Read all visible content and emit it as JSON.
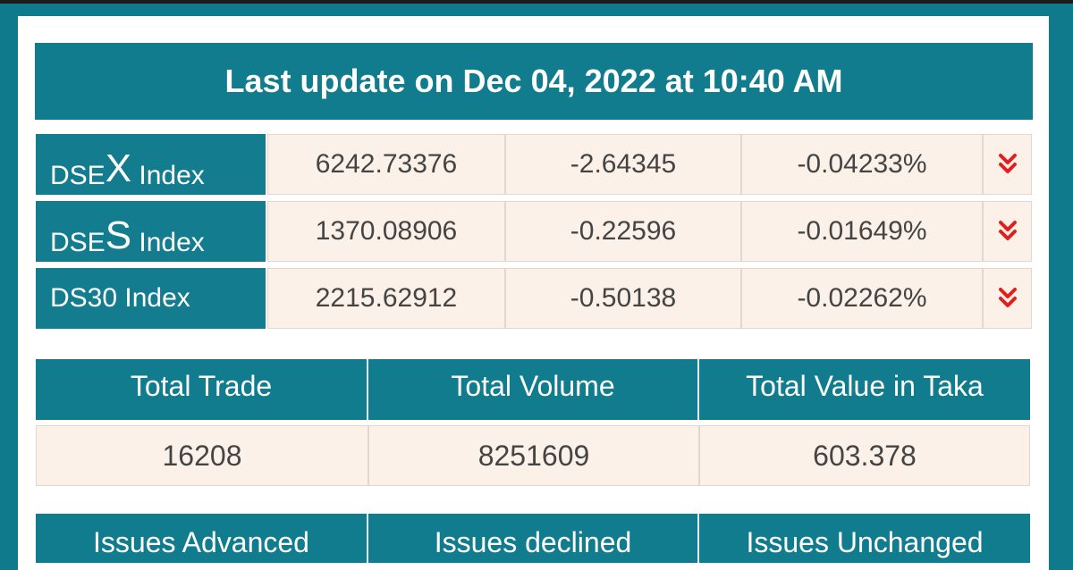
{
  "header": {
    "last_update": "Last update on Dec 04, 2022 at 10:40 AM"
  },
  "indices": [
    {
      "prefix": "DSE",
      "letter": "X",
      "suffix": " Index",
      "value": "6242.73376",
      "change": "-2.64345",
      "percent": "-0.04233%",
      "direction": "down"
    },
    {
      "prefix": "DSE",
      "letter": "S",
      "suffix": " Index",
      "value": "1370.08906",
      "change": "-0.22596",
      "percent": "-0.01649%",
      "direction": "down"
    },
    {
      "label": "DS30 Index",
      "value": "2215.62912",
      "change": "-0.50138",
      "percent": "-0.02262%",
      "direction": "down"
    }
  ],
  "totals": {
    "headers": [
      "Total Trade",
      "Total Volume",
      "Total Value in Taka"
    ],
    "values": [
      "16208",
      "8251609",
      "603.378"
    ]
  },
  "issues": {
    "headers": [
      "Issues Advanced",
      "Issues declined",
      "Issues Unchanged"
    ]
  },
  "colors": {
    "header_bg": "#127c8f",
    "row_bg": "#fcf1e8",
    "down_arrow": "#e0201c"
  }
}
